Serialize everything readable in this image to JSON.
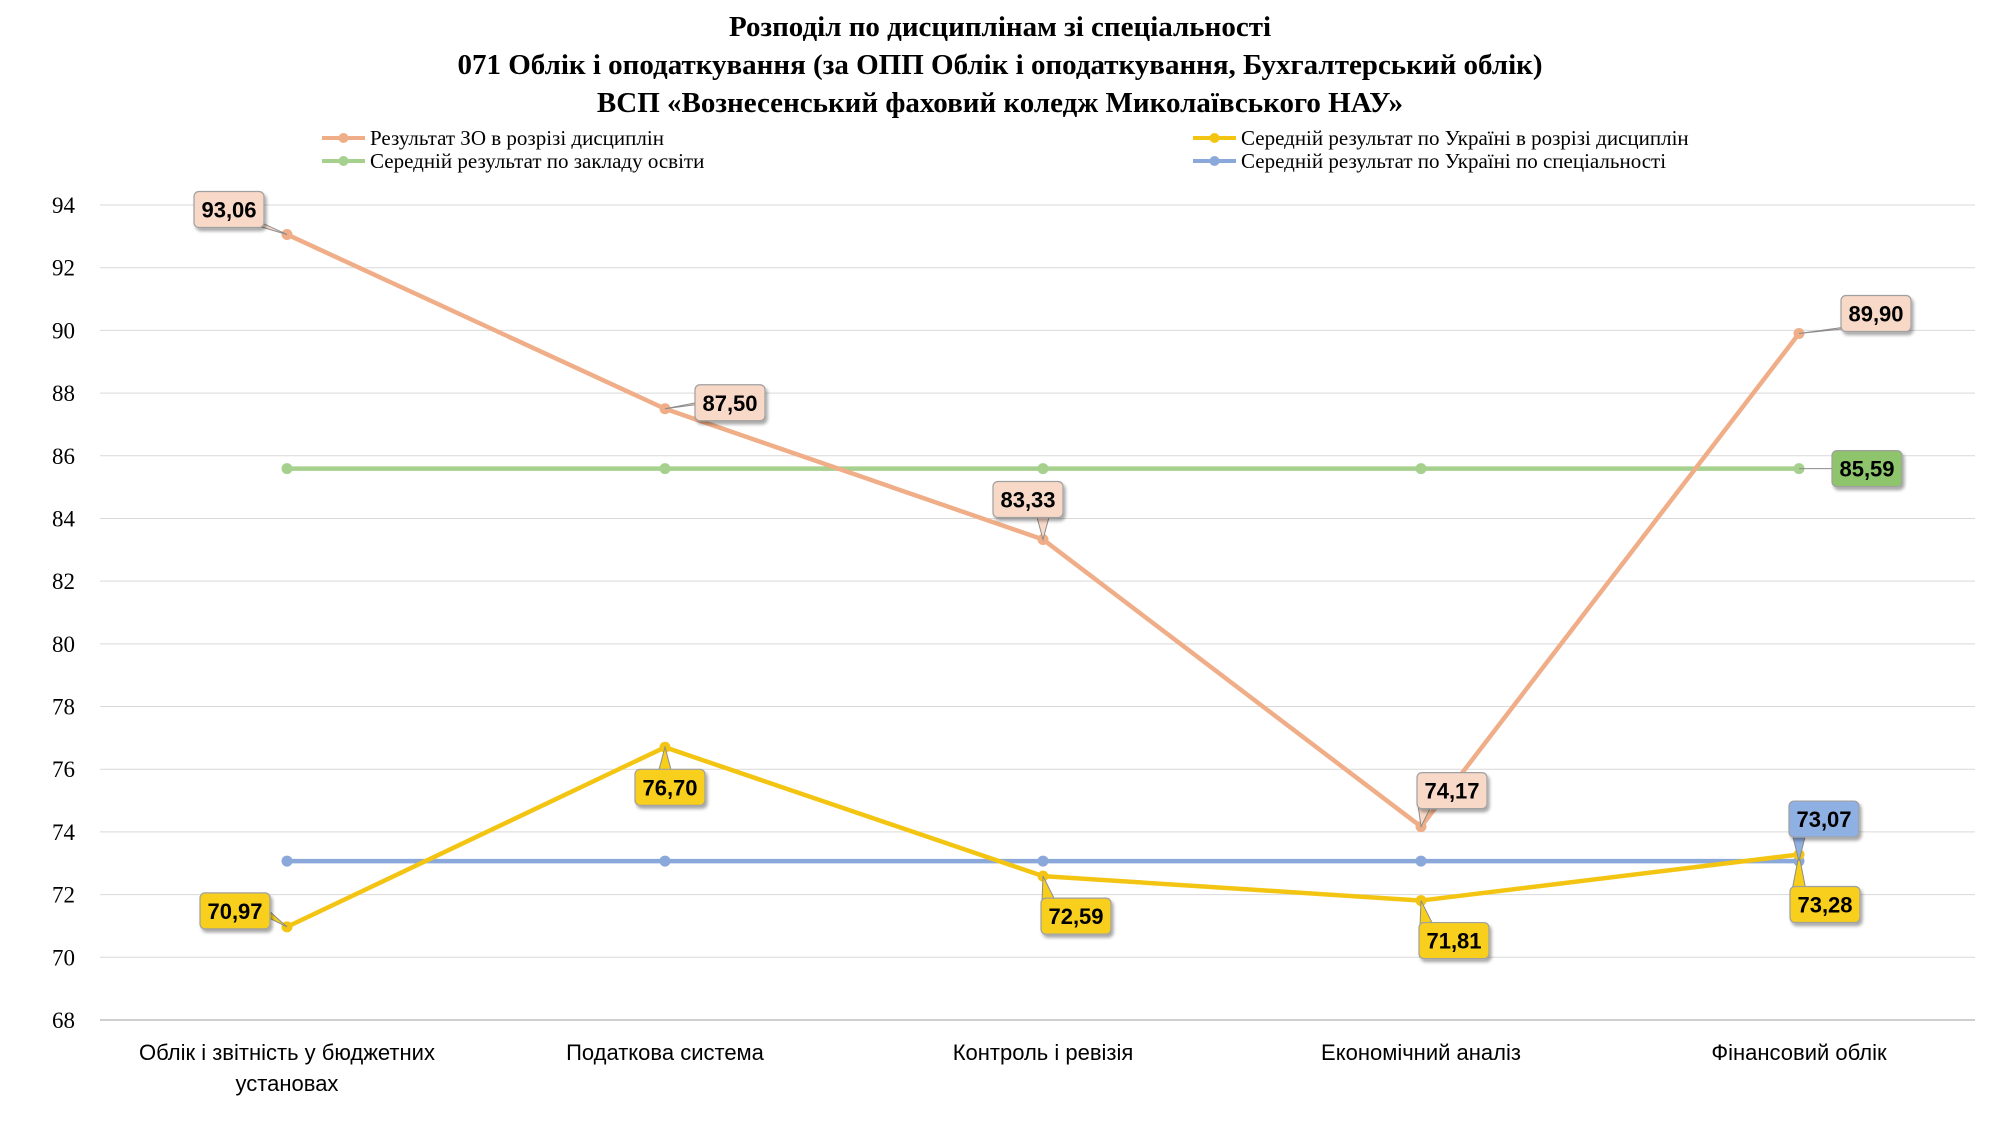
{
  "chart_data": {
    "type": "line",
    "title_lines": [
      "Розподіл по дисциплінам зі спеціальності",
      "071 Облік і оподаткування (за ОПП Облік і оподаткування, Бухгалтерський облік)",
      "ВСП «Вознесенський фаховий коледж Миколаївського НАУ»"
    ],
    "categories": [
      [
        "Облік і звітність у бюджетних",
        "установах"
      ],
      [
        "Податкова система"
      ],
      [
        "Контроль і ревізія"
      ],
      [
        "Економічний аналіз"
      ],
      [
        "Фінансовий облік"
      ]
    ],
    "ylim": [
      68,
      94
    ],
    "yticks": [
      68,
      70,
      72,
      74,
      76,
      78,
      80,
      82,
      84,
      86,
      88,
      90,
      92,
      94
    ],
    "grid": true,
    "legend_position": "top",
    "series": [
      {
        "name": "Результат ЗО в розрізі дисциплін",
        "color": "#f0ae88",
        "label_fill": "#f8d9c8",
        "values": [
          93.06,
          87.5,
          83.33,
          74.17,
          89.9
        ],
        "labels": [
          "93,06",
          "87,50",
          "83,33",
          "74,17",
          "89,90"
        ],
        "label_placement": [
          "left-above",
          "right-above",
          "above",
          "above",
          "right-above"
        ]
      },
      {
        "name": "Середній результат по Україні в розрізі дисциплін",
        "color": "#f3c512",
        "label_fill": "#f7cf1a",
        "values": [
          70.97,
          76.7,
          72.59,
          71.81,
          73.28
        ],
        "labels": [
          "70,97",
          "76,70",
          "72,59",
          "71,81",
          "73,28"
        ],
        "label_placement": [
          "left-below",
          "below",
          "right-below",
          "right-below",
          "below"
        ]
      },
      {
        "name": "Середній результат по закладу освіти",
        "color": "#a6d08e",
        "label_fill": "#8dc46c",
        "values": [
          85.59,
          85.59,
          85.59,
          85.59,
          85.59
        ],
        "labels": [
          "",
          "",
          "",
          "",
          "85,59"
        ],
        "label_placement": [
          "",
          "",
          "",
          "",
          "right"
        ]
      },
      {
        "name": "Середній результат по Україні по спеціальності",
        "color": "#8aa9da",
        "label_fill": "#8fb0e3",
        "values": [
          73.07,
          73.07,
          73.07,
          73.07,
          73.07
        ],
        "labels": [
          "",
          "",
          "",
          "",
          "73,07"
        ],
        "label_placement": [
          "",
          "",
          "",
          "",
          "right-above"
        ]
      }
    ]
  }
}
